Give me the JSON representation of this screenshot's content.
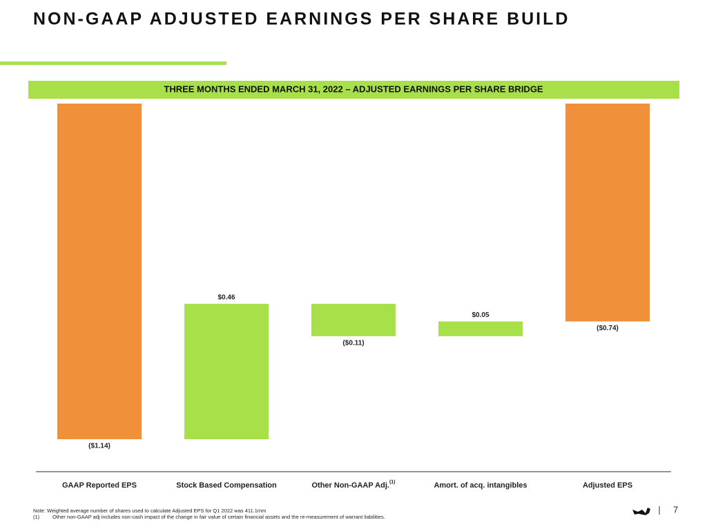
{
  "chart_data": {
    "type": "waterfall",
    "title": "NON-GAAP ADJUSTED EARNINGS PER SHARE BUILD",
    "subtitle": "THREE MONTHS ENDED MARCH 31, 2022 – ADJUSTED EARNINGS PER SHARE BRIDGE",
    "categories": [
      "GAAP Reported EPS",
      "Stock Based Compensation",
      "Other Non-GAAP Adj.",
      "Amort. of acq. intangibles",
      "Adjusted EPS"
    ],
    "category_superscripts": [
      null,
      null,
      "(1)",
      null,
      null
    ],
    "values": [
      -1.14,
      0.46,
      -0.11,
      0.05,
      -0.74
    ],
    "value_labels": [
      "($1.14)",
      "$0.46",
      "($0.11)",
      "$0.05",
      "($0.74)"
    ],
    "totals": [
      true,
      false,
      false,
      false,
      true
    ],
    "colors": [
      "#f0903a",
      "#a8e04a",
      "#a8e04a",
      "#a8e04a",
      "#f0903a"
    ]
  },
  "footer": {
    "note": "Note: Weighted average number of shares used to calculate Adjusted EPS for Q1 2022 was 411.1mm",
    "footnote_marker": "(1)",
    "footnote": "Other non-GAAP adj includes non-cash impact of the change in fair value of certain financial assets and the re-measurement of warrant liabilities.",
    "page_number": 7
  }
}
